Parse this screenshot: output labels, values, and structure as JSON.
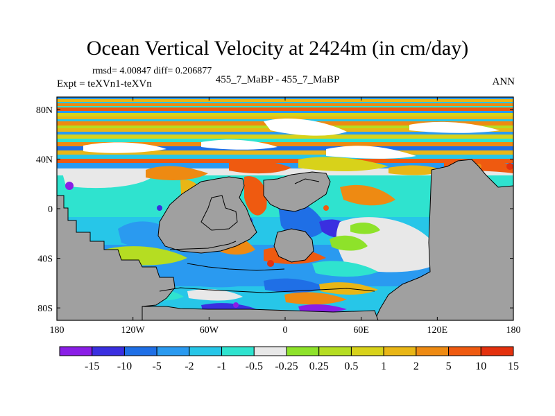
{
  "title": "Ocean Vertical Velocity at 2424m (in cm/day)",
  "stats_text": "rmsd= 4.00847 diff= 0.206877",
  "experiment_text": "Expt = teXVn1-teXVn",
  "period_text": "455_7_MaBP - 455_7_MaBP",
  "season_text": "ANN",
  "chart_data": {
    "type": "heatmap",
    "title": "Ocean Vertical Velocity at 2424m (in cm/day)",
    "units": "cm/day",
    "x_range": [
      -180,
      180
    ],
    "y_range": [
      -90,
      90
    ],
    "x_ticks": [
      {
        "value": -180,
        "label": "180"
      },
      {
        "value": -120,
        "label": "120W"
      },
      {
        "value": -60,
        "label": "60W"
      },
      {
        "value": 0,
        "label": "0"
      },
      {
        "value": 60,
        "label": "60E"
      },
      {
        "value": 120,
        "label": "120E"
      },
      {
        "value": 180,
        "label": "180"
      }
    ],
    "y_ticks": [
      {
        "value": 80,
        "label": "80N"
      },
      {
        "value": 40,
        "label": "40N"
      },
      {
        "value": 0,
        "label": "0"
      },
      {
        "value": -40,
        "label": "40S"
      },
      {
        "value": -80,
        "label": "80S"
      }
    ],
    "contour_levels": [
      "-15",
      "-10",
      "-5",
      "-2",
      "-1",
      "-0.5",
      "-0.25",
      "0.25",
      "0.5",
      "1",
      "2",
      "5",
      "10",
      "15"
    ],
    "colorbar_colors": [
      "#8a1ee6",
      "#3a2fe0",
      "#1f6fe6",
      "#2a9af0",
      "#27c6e8",
      "#2fe3cf",
      "#e8e8e8",
      "#8ee22a",
      "#b5dd22",
      "#d8d21a",
      "#e9b616",
      "#ee8a12",
      "#ef5a10",
      "#e4310e"
    ],
    "land_color": "#a0a0a0"
  }
}
